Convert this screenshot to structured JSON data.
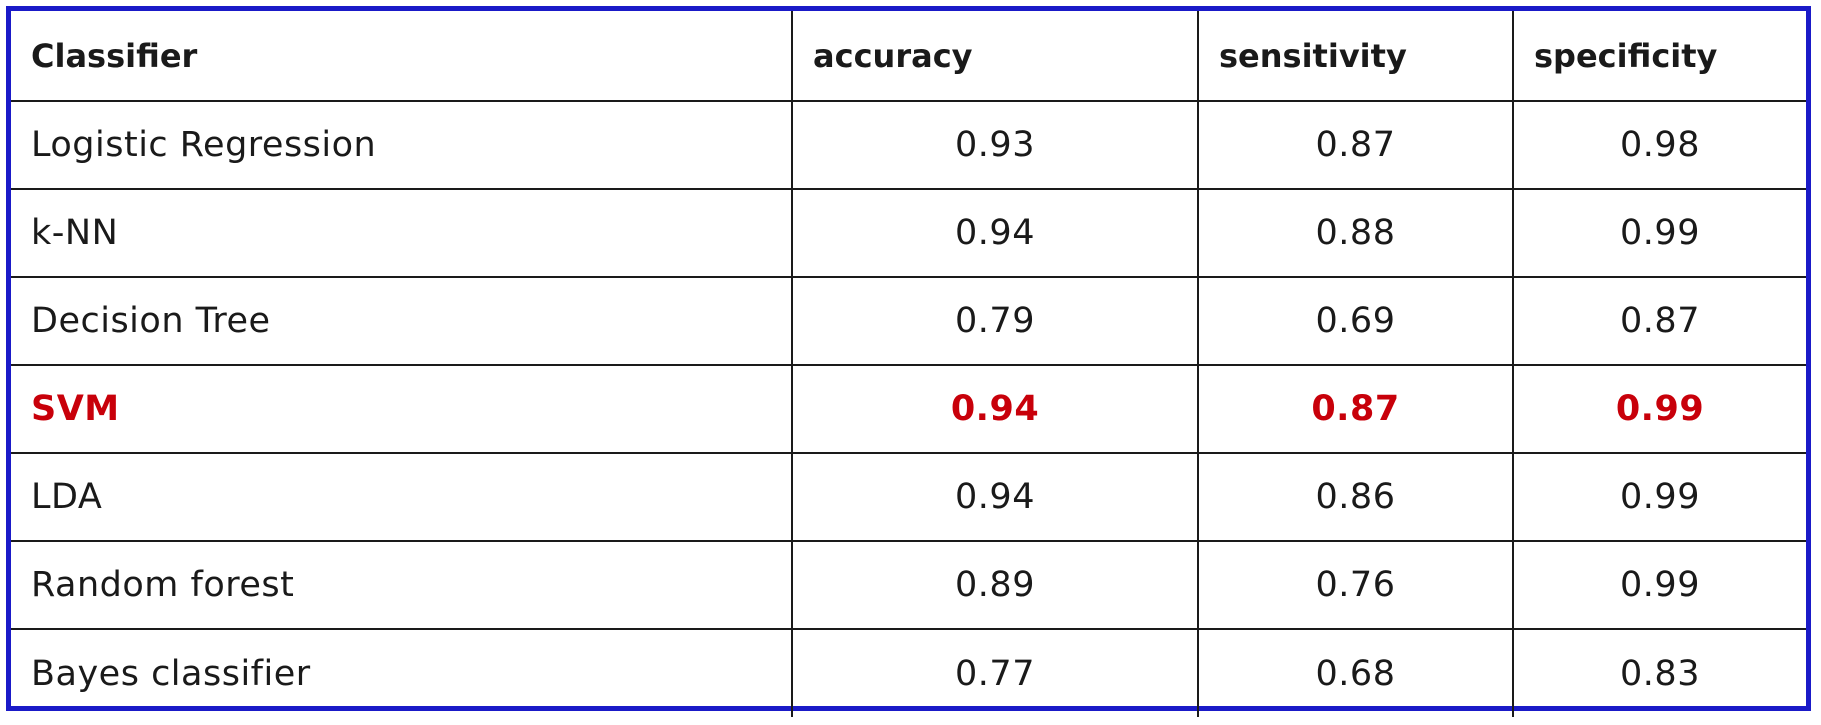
{
  "colors": {
    "frame_border": "#1a1ac8",
    "highlight_text": "#c8000a",
    "text": "#1a1a1a"
  },
  "chart_data": {
    "type": "table",
    "columns": [
      "Classifier",
      "accuracy",
      "sensitivity",
      "specificity"
    ],
    "rows": [
      {
        "classifier": "Logistic Regression",
        "accuracy": "0.93",
        "sensitivity": "0.87",
        "specificity": "0.98",
        "highlighted": false
      },
      {
        "classifier": "k-NN",
        "accuracy": "0.94",
        "sensitivity": "0.88",
        "specificity": "0.99",
        "highlighted": false
      },
      {
        "classifier": "Decision Tree",
        "accuracy": "0.79",
        "sensitivity": "0.69",
        "specificity": "0.87",
        "highlighted": false
      },
      {
        "classifier": "SVM",
        "accuracy": "0.94",
        "sensitivity": "0.87",
        "specificity": "0.99",
        "highlighted": true
      },
      {
        "classifier": "LDA",
        "accuracy": "0.94",
        "sensitivity": "0.86",
        "specificity": "0.99",
        "highlighted": false
      },
      {
        "classifier": "Random forest",
        "accuracy": "0.89",
        "sensitivity": "0.76",
        "specificity": "0.99",
        "highlighted": false
      },
      {
        "classifier": "Bayes classifier",
        "accuracy": "0.77",
        "sensitivity": "0.68",
        "specificity": "0.83",
        "highlighted": false
      }
    ]
  }
}
